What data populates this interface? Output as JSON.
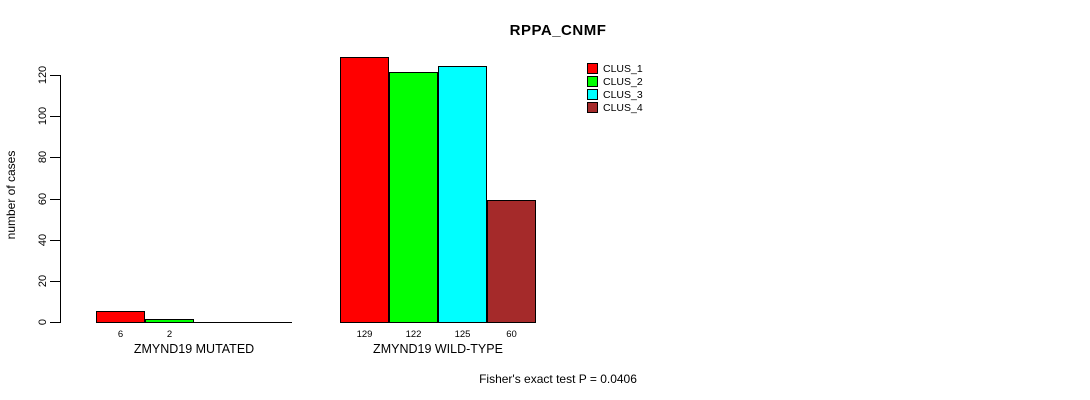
{
  "page": {
    "background_color": "#ffffff"
  },
  "chart_data": {
    "type": "bar",
    "title": "RPPA_CNMF",
    "xlabel": "",
    "ylabel": "number of cases",
    "ylim": [
      0,
      120
    ],
    "yticks": [
      0,
      20,
      40,
      60,
      80,
      100,
      120
    ],
    "grid": false,
    "legend_position": "top-right",
    "categories": [
      "ZMYND19 MUTATED",
      "ZMYND19 WILD-TYPE"
    ],
    "series": [
      {
        "name": "CLUS_1",
        "color": "#ff0000",
        "values": [
          6,
          129
        ]
      },
      {
        "name": "CLUS_2",
        "color": "#00ff00",
        "values": [
          2,
          122
        ]
      },
      {
        "name": "CLUS_3",
        "color": "#00ffff",
        "values": [
          0,
          125
        ]
      },
      {
        "name": "CLUS_4",
        "color": "#a52a2a",
        "values": [
          0,
          60
        ]
      }
    ],
    "bar_value_labels": [
      [
        "6",
        "2",
        "",
        ""
      ],
      [
        "129",
        "122",
        "125",
        "60"
      ]
    ],
    "annotation": "Fisher's exact test P = 0.0406"
  }
}
